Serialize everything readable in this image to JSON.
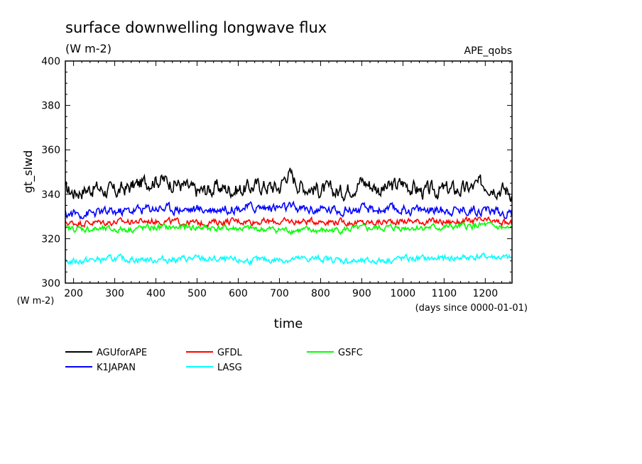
{
  "chart_data": {
    "type": "line",
    "title": "surface downwelling longwave flux",
    "subtitle": "(W m-2)",
    "experiment": "APE_qobs",
    "ylabel": "gt_slwd",
    "yunit": "(W m-2)",
    "xlabel": "time",
    "xunit": "(days since 0000-01-01)",
    "xlim": [
      180,
      1265
    ],
    "ylim": [
      300,
      400
    ],
    "xticks": [
      "200",
      "300",
      "400",
      "500",
      "600",
      "700",
      "800",
      "900",
      "1000",
      "1100",
      "1200"
    ],
    "yticks": [
      "300",
      "320",
      "340",
      "360",
      "380",
      "400"
    ],
    "grid": false,
    "legend_position": "bottom",
    "series": [
      {
        "name": "AGUforAPE",
        "color": "#000000",
        "mean": 342.5,
        "amplitude": 3.0,
        "x": [
          180,
          200,
          250,
          300,
          350,
          400,
          450,
          500,
          550,
          600,
          650,
          700,
          720,
          750,
          800,
          850,
          900,
          950,
          1000,
          1050,
          1100,
          1150,
          1200,
          1265
        ],
        "y": [
          342,
          341,
          343,
          341,
          344,
          347,
          345,
          341,
          343,
          342,
          344,
          343,
          350,
          344,
          342,
          341,
          346,
          342,
          345,
          341,
          342,
          342,
          345,
          341
        ]
      },
      {
        "name": "GFDL",
        "color": "#ff0000",
        "mean": 327.5,
        "amplitude": 1.2,
        "x": [
          180,
          300,
          400,
          500,
          600,
          700,
          800,
          900,
          1000,
          1100,
          1200,
          1265
        ],
        "y": [
          327,
          327.5,
          328,
          327,
          328,
          327.5,
          328,
          327,
          328,
          327.5,
          328,
          326.5
        ]
      },
      {
        "name": "GSFC",
        "color": "#00ff00",
        "mean": 324.5,
        "amplitude": 1.2,
        "x": [
          180,
          300,
          400,
          500,
          600,
          700,
          800,
          900,
          1000,
          1100,
          1200,
          1265
        ],
        "y": [
          324.5,
          324,
          325,
          325,
          324.5,
          324,
          323.5,
          324.5,
          325,
          325,
          326,
          324
        ]
      },
      {
        "name": "K1JAPAN",
        "color": "#0000ff",
        "mean": 332.5,
        "amplitude": 1.8,
        "x": [
          180,
          300,
          400,
          500,
          600,
          700,
          800,
          900,
          1000,
          1100,
          1200,
          1265
        ],
        "y": [
          331,
          332,
          334,
          333,
          334,
          334,
          333,
          333,
          333,
          333,
          333,
          331
        ]
      },
      {
        "name": "LASG",
        "color": "#00ffff",
        "mean": 311,
        "amplitude": 1.2,
        "x": [
          180,
          300,
          400,
          500,
          600,
          700,
          800,
          900,
          1000,
          1100,
          1200,
          1265
        ],
        "y": [
          309.5,
          311,
          310.5,
          311,
          310,
          310.5,
          311,
          309.5,
          311,
          311,
          312,
          311
        ]
      }
    ]
  }
}
